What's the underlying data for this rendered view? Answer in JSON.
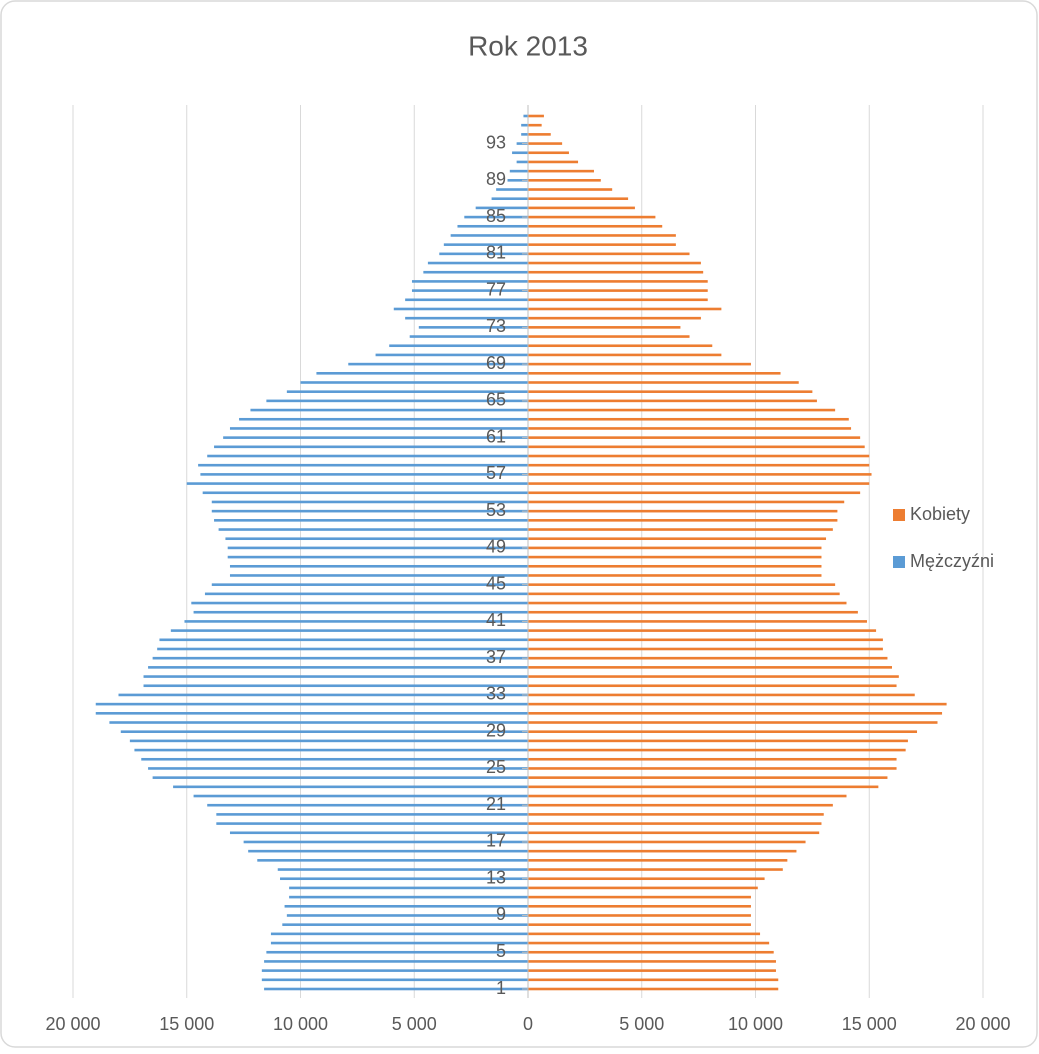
{
  "chart_data": {
    "type": "pyramid",
    "title": "Rok 2013",
    "categories": [
      "1",
      null,
      null,
      null,
      "5",
      null,
      null,
      null,
      "9",
      null,
      null,
      null,
      "13",
      null,
      null,
      null,
      "17",
      null,
      null,
      null,
      "21",
      null,
      null,
      null,
      "25",
      null,
      null,
      null,
      "29",
      null,
      null,
      null,
      "33",
      null,
      null,
      null,
      "37",
      null,
      null,
      null,
      "41",
      null,
      null,
      null,
      "45",
      null,
      null,
      null,
      "49",
      null,
      null,
      null,
      "53",
      null,
      null,
      null,
      "57",
      null,
      null,
      null,
      "61",
      null,
      null,
      null,
      "65",
      null,
      null,
      null,
      "69",
      null,
      null,
      null,
      "73",
      null,
      null,
      null,
      "77",
      null,
      null,
      null,
      "81",
      null,
      null,
      null,
      "85",
      null,
      null,
      null,
      "89",
      null,
      null,
      null,
      "93",
      null,
      null,
      null
    ],
    "series": [
      {
        "name": "Kobiety",
        "color": "#ed7d31",
        "values": [
          11000,
          11000,
          10900,
          10900,
          10800,
          10600,
          10200,
          9800,
          9800,
          9800,
          9800,
          10100,
          10400,
          11200,
          11400,
          11800,
          12200,
          12800,
          12900,
          13000,
          13400,
          14000,
          15400,
          15800,
          16200,
          16200,
          16600,
          16700,
          17100,
          18000,
          18200,
          18400,
          17000,
          16200,
          16300,
          16000,
          15800,
          15600,
          15600,
          15300,
          14900,
          14500,
          14000,
          13700,
          13500,
          12900,
          12900,
          12900,
          12900,
          13100,
          13400,
          13600,
          13600,
          13900,
          14600,
          15000,
          15100,
          15000,
          15000,
          14800,
          14600,
          14200,
          14100,
          13500,
          12700,
          12500,
          11900,
          11100,
          9800,
          8500,
          8100,
          7100,
          6700,
          7600,
          8500,
          7900,
          7900,
          7900,
          7700,
          7600,
          7100,
          6500,
          6500,
          5900,
          5600,
          4700,
          4400,
          3700,
          3200,
          2900,
          2200,
          1800,
          1500,
          1000,
          600,
          700
        ]
      },
      {
        "name": "Mężczyźni",
        "color": "#5b9bd5",
        "values": [
          -11600,
          -11700,
          -11700,
          -11600,
          -11500,
          -11300,
          -11300,
          -10800,
          -10600,
          -10700,
          -10500,
          -10500,
          -10900,
          -11000,
          -11900,
          -12300,
          -12500,
          -13100,
          -13700,
          -13700,
          -14100,
          -14700,
          -15600,
          -16500,
          -16700,
          -17000,
          -17300,
          -17500,
          -17900,
          -18400,
          -19000,
          -19000,
          -18000,
          -16900,
          -16900,
          -16700,
          -16500,
          -16300,
          -16200,
          -15700,
          -15100,
          -14700,
          -14800,
          -14200,
          -13900,
          -13100,
          -13100,
          -13200,
          -13200,
          -13300,
          -13600,
          -13800,
          -13900,
          -13900,
          -14300,
          -15000,
          -14400,
          -14500,
          -14100,
          -13800,
          -13400,
          -13100,
          -12700,
          -12200,
          -11500,
          -10600,
          -10000,
          -9300,
          -7900,
          -6700,
          -6100,
          -5200,
          -4800,
          -5400,
          -5900,
          -5400,
          -5100,
          -5100,
          -4600,
          -4400,
          -3900,
          -3700,
          -3400,
          -3100,
          -2800,
          -2300,
          -1600,
          -1400,
          -900,
          -800,
          -500,
          -700,
          -500,
          -300,
          -300,
          -200
        ]
      }
    ],
    "xlim": [
      -20000,
      20000
    ],
    "xticks": [
      {
        "value": -20000,
        "label": "20 000"
      },
      {
        "value": -15000,
        "label": "15 000"
      },
      {
        "value": -10000,
        "label": "10 000"
      },
      {
        "value": -5000,
        "label": "5 000"
      },
      0,
      {
        "value": 5000,
        "label": "5 000"
      },
      {
        "value": 10000,
        "label": "10 000"
      },
      {
        "value": 15000,
        "label": "15 000"
      },
      {
        "value": 20000,
        "label": "20 000"
      }
    ],
    "grid": true,
    "legend": "right"
  }
}
